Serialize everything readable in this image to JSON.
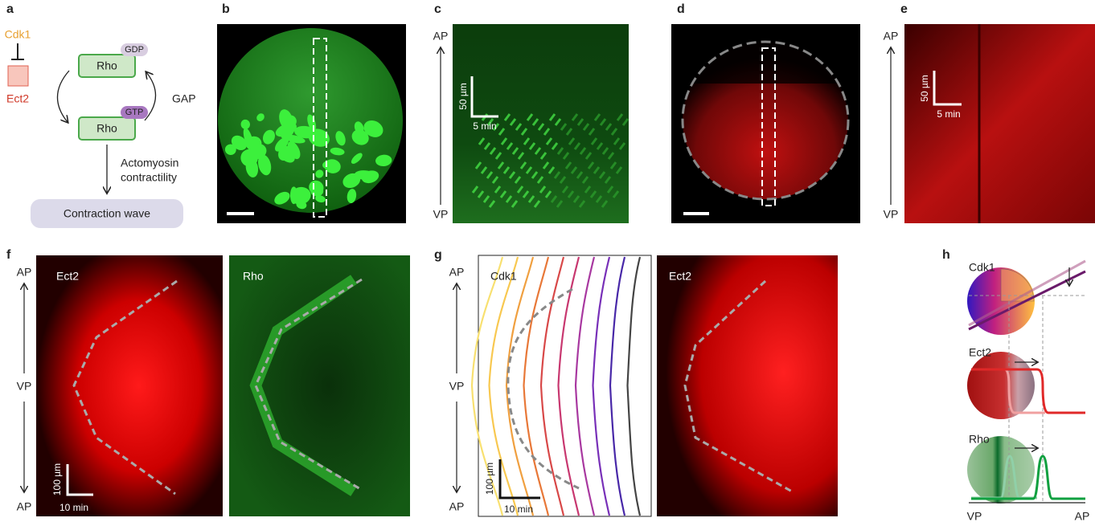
{
  "panels": {
    "a": {
      "label": "a",
      "inhibitor": "Cdk1",
      "target": "Ect2",
      "gdp_tag": "GDP",
      "gdp_node": "Rho",
      "gtp_tag": "GTP",
      "gtp_node": "Rho",
      "gap": "GAP",
      "arrow_label": [
        "Actomyosin",
        "contractility"
      ],
      "output": "Contraction wave"
    },
    "b": {
      "label": "b"
    },
    "c": {
      "label": "c",
      "axis_top": "AP",
      "axis_bottom": "VP",
      "scale_y": "50 µm",
      "scale_x": "5 min"
    },
    "d": {
      "label": "d"
    },
    "e": {
      "label": "e",
      "axis_top": "AP",
      "axis_bottom": "VP",
      "scale_y": "50 µm",
      "scale_x": "5 min"
    },
    "f": {
      "label": "f",
      "axis": [
        "AP",
        "VP",
        "AP"
      ],
      "left_title": "Ect2",
      "right_title": "Rho",
      "scale_y": "100 µm",
      "scale_x": "10 min"
    },
    "g": {
      "label": "g",
      "axis": [
        "AP",
        "VP",
        "AP"
      ],
      "left_title": "Cdk1",
      "right_title": "Ect2",
      "scale_y": "100 µm",
      "scale_x": "10 min"
    },
    "h": {
      "label": "h",
      "rows": [
        "Cdk1",
        "Ect2",
        "Rho"
      ],
      "x_start": "VP",
      "x_end": "AP"
    }
  }
}
